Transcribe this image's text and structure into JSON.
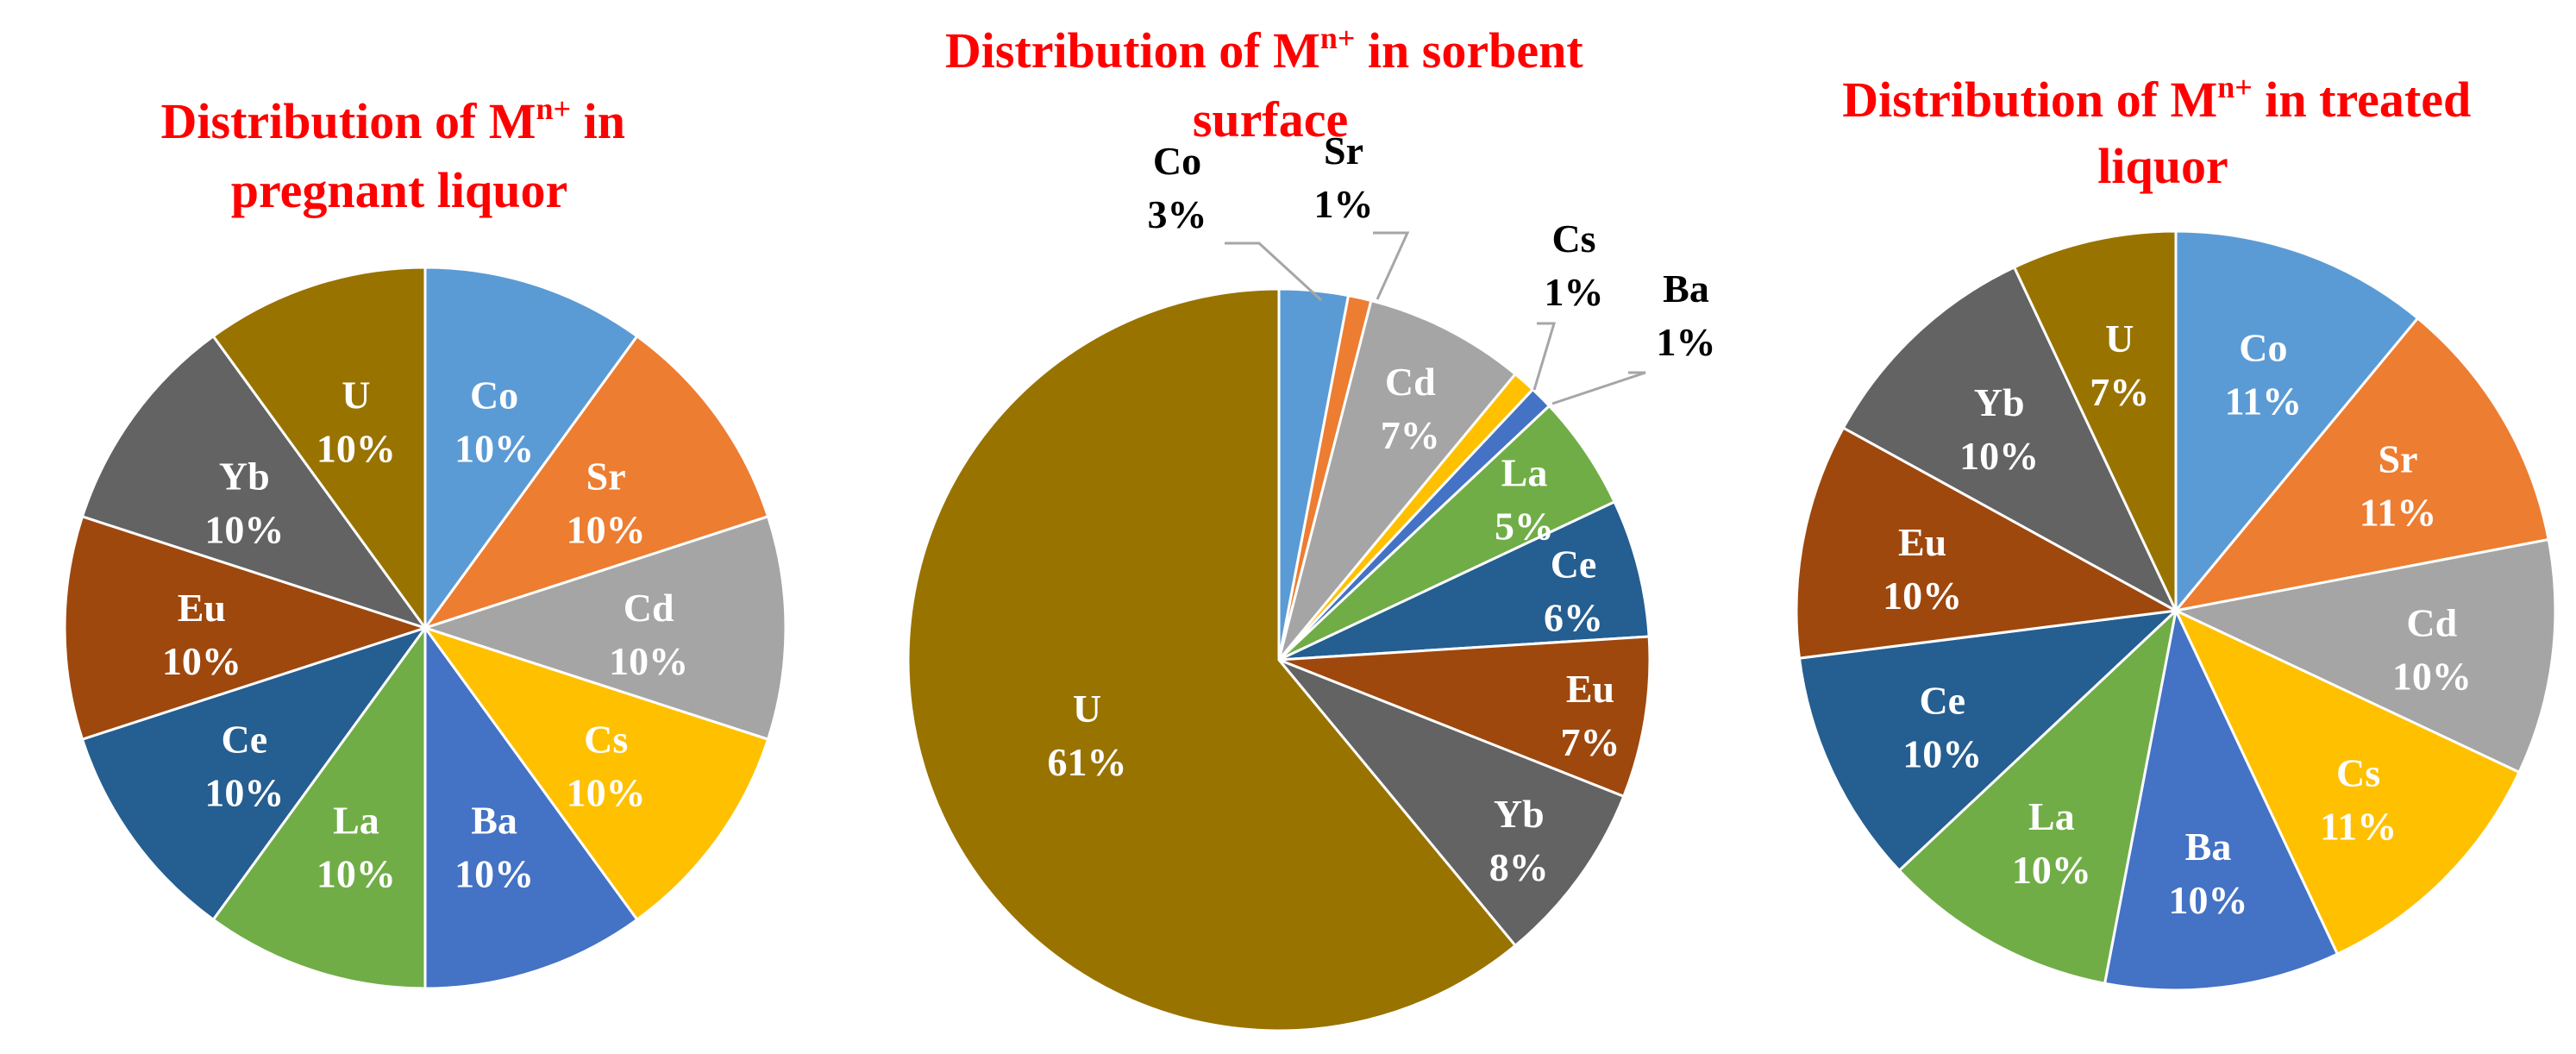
{
  "colors": {
    "Co": "#5b9bd5",
    "Sr": "#ed7d31",
    "Cd": "#a5a5a5",
    "Cs": "#ffc000",
    "Ba": "#4472c4",
    "La": "#70ad47",
    "Ce": "#255e91",
    "Eu": "#9e480e",
    "Yb": "#636363",
    "U": "#997300"
  },
  "chart_data": [
    {
      "type": "pie",
      "title_lines": [
        "Distribution of M",
        "n+",
        " in",
        "pregnant liquor"
      ],
      "categories": [
        "Co",
        "Sr",
        "Cd",
        "Cs",
        "Ba",
        "La",
        "Ce",
        "Eu",
        "Yb",
        "U"
      ],
      "values": [
        10,
        10,
        10,
        10,
        10,
        10,
        10,
        10,
        10,
        10
      ],
      "labels": [
        "10%",
        "10%",
        "10%",
        "10%",
        "10%",
        "10%",
        "10%",
        "10%",
        "10%",
        "10%"
      ]
    },
    {
      "type": "pie",
      "title_lines": [
        "Distribution of M",
        "n+",
        " in sorbent",
        "surface"
      ],
      "categories": [
        "Co",
        "Sr",
        "Cd",
        "Cs",
        "Ba",
        "La",
        "Ce",
        "Eu",
        "Yb",
        "U"
      ],
      "values": [
        3,
        1,
        7,
        1,
        1,
        5,
        6,
        7,
        8,
        61
      ],
      "labels": [
        "3%",
        "1%",
        "7%",
        "1%",
        "1%",
        "5%",
        "6%",
        "7%",
        "8%",
        "61%"
      ]
    },
    {
      "type": "pie",
      "title_lines": [
        "Distribution of M",
        "n+",
        " in treated",
        "liquor"
      ],
      "categories": [
        "Co",
        "Sr",
        "Cd",
        "Cs",
        "Ba",
        "La",
        "Ce",
        "Eu",
        "Yb",
        "U"
      ],
      "values": [
        11,
        11,
        10,
        11,
        10,
        10,
        10,
        10,
        10,
        7
      ],
      "labels": [
        "11%",
        "11%",
        "10%",
        "11%",
        "10%",
        "10%",
        "10%",
        "10%",
        "10%",
        "7%"
      ]
    }
  ]
}
